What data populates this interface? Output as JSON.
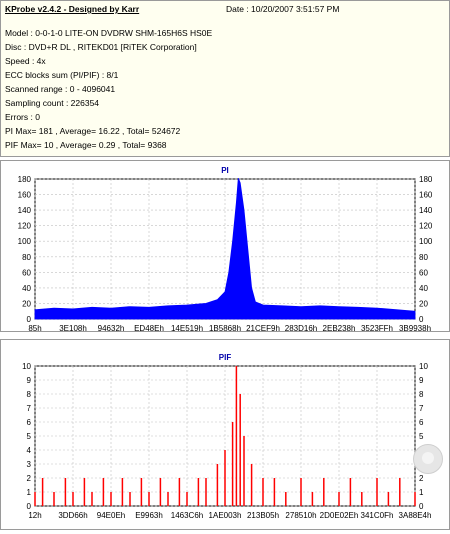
{
  "info": {
    "title": "KProbe v2.4.2 - Designed by Karr",
    "date": "Date : 10/20/2007 3:51:57 PM",
    "lines": [
      "Model : 0-0-1-0 LITE-ON DVDRW SHM-165H6S HS0E",
      "Disc : DVD+R DL , RITEKD01 [RiTEK Corporation]",
      "Speed : 4x",
      "ECC blocks sum (PI/PIF) : 8/1",
      "Scanned range : 0 - 4096041",
      "Sampling count : 226354",
      "Errors : 0",
      "PI Max= 181 , Average= 16.22 , Total= 524672",
      "PIF Max= 10 , Average= 0.29 , Total= 9368"
    ]
  },
  "colors": {
    "pi": "#0000ff",
    "pif": "#ff0000",
    "axis": "#000000",
    "grid": "#c0c0c0"
  },
  "chart_data": [
    {
      "type": "area",
      "title": "PI",
      "ylim": [
        0,
        180
      ],
      "yticks": [
        0,
        20,
        40,
        60,
        80,
        100,
        120,
        140,
        160,
        180
      ],
      "xticklabels": [
        "85h",
        "3E108h",
        "94632h",
        "ED48Eh",
        "14E519h",
        "1B5868h",
        "21CEF9h",
        "283D16h",
        "2EB238h",
        "3523FFh",
        "3B9938h"
      ],
      "series": [
        {
          "values": [
            [
              0,
              12
            ],
            [
              0.05,
              14
            ],
            [
              0.1,
              13
            ],
            [
              0.15,
              15
            ],
            [
              0.2,
              14
            ],
            [
              0.25,
              16
            ],
            [
              0.3,
              15
            ],
            [
              0.35,
              17
            ],
            [
              0.4,
              18
            ],
            [
              0.45,
              20
            ],
            [
              0.48,
              25
            ],
            [
              0.5,
              35
            ],
            [
              0.51,
              60
            ],
            [
              0.52,
              100
            ],
            [
              0.53,
              150
            ],
            [
              0.535,
              181
            ],
            [
              0.54,
              175
            ],
            [
              0.55,
              140
            ],
            [
              0.56,
              90
            ],
            [
              0.57,
              40
            ],
            [
              0.58,
              22
            ],
            [
              0.6,
              18
            ],
            [
              0.65,
              17
            ],
            [
              0.7,
              16
            ],
            [
              0.75,
              17
            ],
            [
              0.8,
              16
            ],
            [
              0.85,
              15
            ],
            [
              0.9,
              14
            ],
            [
              0.95,
              12
            ],
            [
              1.0,
              10
            ]
          ]
        }
      ]
    },
    {
      "type": "bar",
      "title": "PIF",
      "ylim": [
        0,
        10
      ],
      "yticks": [
        0,
        1,
        2,
        3,
        4,
        5,
        6,
        7,
        8,
        9,
        10
      ],
      "xticklabels": [
        "12h",
        "3DD66h",
        "94E0Eh",
        "E9963h",
        "1463C6h",
        "1AE003h",
        "213B05h",
        "278510h",
        "2D0E02Eh",
        "341C0Fh",
        "3A88E4h"
      ],
      "series": [
        {
          "values": [
            [
              0,
              1
            ],
            [
              0.02,
              2
            ],
            [
              0.05,
              1
            ],
            [
              0.08,
              2
            ],
            [
              0.1,
              1
            ],
            [
              0.13,
              2
            ],
            [
              0.15,
              1
            ],
            [
              0.18,
              2
            ],
            [
              0.2,
              1
            ],
            [
              0.23,
              2
            ],
            [
              0.25,
              1
            ],
            [
              0.28,
              2
            ],
            [
              0.3,
              1
            ],
            [
              0.33,
              2
            ],
            [
              0.35,
              1
            ],
            [
              0.38,
              2
            ],
            [
              0.4,
              1
            ],
            [
              0.43,
              2
            ],
            [
              0.45,
              2
            ],
            [
              0.48,
              3
            ],
            [
              0.5,
              4
            ],
            [
              0.52,
              6
            ],
            [
              0.53,
              10
            ],
            [
              0.54,
              8
            ],
            [
              0.55,
              5
            ],
            [
              0.57,
              3
            ],
            [
              0.6,
              2
            ],
            [
              0.63,
              2
            ],
            [
              0.66,
              1
            ],
            [
              0.7,
              2
            ],
            [
              0.73,
              1
            ],
            [
              0.76,
              2
            ],
            [
              0.8,
              1
            ],
            [
              0.83,
              2
            ],
            [
              0.86,
              1
            ],
            [
              0.9,
              2
            ],
            [
              0.93,
              1
            ],
            [
              0.96,
              2
            ],
            [
              1.0,
              1
            ]
          ]
        }
      ]
    }
  ]
}
